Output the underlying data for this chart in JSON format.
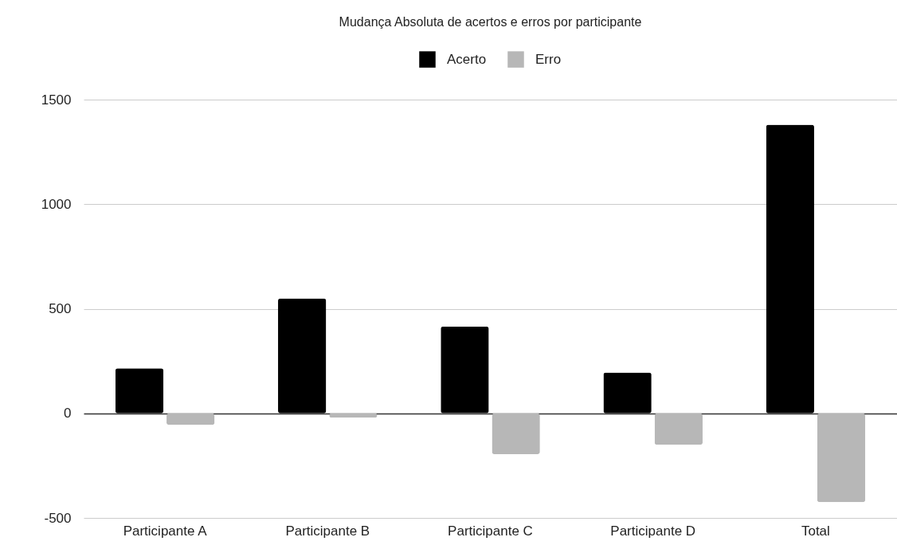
{
  "chart_data": {
    "type": "bar",
    "title": "Mudança Absoluta de acertos e erros por participante",
    "categories": [
      "Participante A",
      "Participante B",
      "Participante C",
      "Participante D",
      "Total"
    ],
    "series": [
      {
        "name": "Acerto",
        "color": "#000000",
        "values": [
          215,
          550,
          415,
          195,
          1380
        ]
      },
      {
        "name": "Erro",
        "color": "#b7b7b7",
        "values": [
          -55,
          -20,
          -195,
          -150,
          -425
        ]
      }
    ],
    "ylim": [
      -500,
      1500
    ],
    "yticks": [
      -500,
      0,
      500,
      1000,
      1500
    ],
    "grid": "y",
    "legend": "top"
  }
}
